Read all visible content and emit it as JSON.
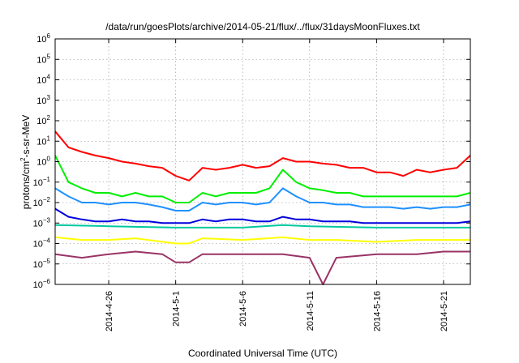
{
  "chart_data": {
    "type": "line",
    "title": "/data/run/goesPlots/archive/2014-05-21/flux/../flux/31daysMoonFluxes.txt",
    "xlabel": "Coordinated Universal Time (UTC)",
    "ylabel_parts": {
      "base": "protons/cm",
      "sup": "2",
      "rest": "-s-sr-MeV"
    },
    "y_scale": "log",
    "ylim": [
      1e-06,
      1000000.0
    ],
    "y_ticks": [
      {
        "exp": -6
      },
      {
        "exp": -5
      },
      {
        "exp": -4
      },
      {
        "exp": -3
      },
      {
        "exp": -2
      },
      {
        "exp": -1
      },
      {
        "exp": 0
      },
      {
        "exp": 1
      },
      {
        "exp": 2
      },
      {
        "exp": 3
      },
      {
        "exp": 4
      },
      {
        "exp": 5
      },
      {
        "exp": 6
      }
    ],
    "y_tick_base": "10",
    "xlim": [
      "2014-04-22",
      "2014-05-23"
    ],
    "x_ticks": [
      "2014-4-26",
      "2014-5-1",
      "2014-5-6",
      "2014-5-11",
      "2014-5-16",
      "2014-5-21"
    ],
    "grid": true,
    "legend": "none",
    "series": [
      {
        "color": "#ff0000",
        "values": [
          [
            "2014-04-22",
            30
          ],
          [
            "2014-04-23",
            5
          ],
          [
            "2014-04-24",
            3
          ],
          [
            "2014-04-25",
            2
          ],
          [
            "2014-04-26",
            1.5
          ],
          [
            "2014-04-27",
            1
          ],
          [
            "2014-04-28",
            0.8
          ],
          [
            "2014-04-29",
            0.6
          ],
          [
            "2014-04-30",
            0.5
          ],
          [
            "2014-05-01",
            0.2
          ],
          [
            "2014-05-02",
            0.12
          ],
          [
            "2014-05-03",
            0.5
          ],
          [
            "2014-05-04",
            0.4
          ],
          [
            "2014-05-05",
            0.5
          ],
          [
            "2014-05-06",
            0.7
          ],
          [
            "2014-05-07",
            0.5
          ],
          [
            "2014-05-08",
            0.6
          ],
          [
            "2014-05-09",
            1.5
          ],
          [
            "2014-05-10",
            1
          ],
          [
            "2014-05-11",
            1
          ],
          [
            "2014-05-12",
            0.8
          ],
          [
            "2014-05-13",
            0.7
          ],
          [
            "2014-05-14",
            0.5
          ],
          [
            "2014-05-15",
            0.5
          ],
          [
            "2014-05-16",
            0.3
          ],
          [
            "2014-05-17",
            0.3
          ],
          [
            "2014-05-18",
            0.2
          ],
          [
            "2014-05-19",
            0.4
          ],
          [
            "2014-05-20",
            0.3
          ],
          [
            "2014-05-21",
            0.4
          ],
          [
            "2014-05-22",
            0.5
          ],
          [
            "2014-05-23",
            2
          ]
        ]
      },
      {
        "color": "#00ee00",
        "values": [
          [
            "2014-04-22",
            2
          ],
          [
            "2014-04-23",
            0.1
          ],
          [
            "2014-04-24",
            0.05
          ],
          [
            "2014-04-25",
            0.03
          ],
          [
            "2014-04-26",
            0.03
          ],
          [
            "2014-04-27",
            0.02
          ],
          [
            "2014-04-28",
            0.03
          ],
          [
            "2014-04-29",
            0.02
          ],
          [
            "2014-04-30",
            0.02
          ],
          [
            "2014-05-01",
            0.01
          ],
          [
            "2014-05-02",
            0.01
          ],
          [
            "2014-05-03",
            0.03
          ],
          [
            "2014-05-04",
            0.02
          ],
          [
            "2014-05-05",
            0.03
          ],
          [
            "2014-05-06",
            0.03
          ],
          [
            "2014-05-07",
            0.03
          ],
          [
            "2014-05-08",
            0.05
          ],
          [
            "2014-05-09",
            0.4
          ],
          [
            "2014-05-10",
            0.1
          ],
          [
            "2014-05-11",
            0.05
          ],
          [
            "2014-05-12",
            0.04
          ],
          [
            "2014-05-13",
            0.03
          ],
          [
            "2014-05-14",
            0.03
          ],
          [
            "2014-05-15",
            0.02
          ],
          [
            "2014-05-16",
            0.02
          ],
          [
            "2014-05-17",
            0.02
          ],
          [
            "2014-05-18",
            0.02
          ],
          [
            "2014-05-19",
            0.02
          ],
          [
            "2014-05-20",
            0.02
          ],
          [
            "2014-05-21",
            0.02
          ],
          [
            "2014-05-22",
            0.02
          ],
          [
            "2014-05-23",
            0.03
          ]
        ]
      },
      {
        "color": "#1e90ff",
        "values": [
          [
            "2014-04-22",
            0.05
          ],
          [
            "2014-04-23",
            0.02
          ],
          [
            "2014-04-24",
            0.01
          ],
          [
            "2014-04-25",
            0.01
          ],
          [
            "2014-04-26",
            0.008
          ],
          [
            "2014-04-27",
            0.01
          ],
          [
            "2014-04-28",
            0.01
          ],
          [
            "2014-04-29",
            0.008
          ],
          [
            "2014-04-30",
            0.006
          ],
          [
            "2014-05-01",
            0.004
          ],
          [
            "2014-05-02",
            0.004
          ],
          [
            "2014-05-03",
            0.01
          ],
          [
            "2014-05-04",
            0.008
          ],
          [
            "2014-05-05",
            0.01
          ],
          [
            "2014-05-06",
            0.01
          ],
          [
            "2014-05-07",
            0.008
          ],
          [
            "2014-05-08",
            0.01
          ],
          [
            "2014-05-09",
            0.05
          ],
          [
            "2014-05-10",
            0.02
          ],
          [
            "2014-05-11",
            0.01
          ],
          [
            "2014-05-12",
            0.01
          ],
          [
            "2014-05-13",
            0.008
          ],
          [
            "2014-05-14",
            0.008
          ],
          [
            "2014-05-15",
            0.006
          ],
          [
            "2014-05-16",
            0.006
          ],
          [
            "2014-05-17",
            0.006
          ],
          [
            "2014-05-18",
            0.005
          ],
          [
            "2014-05-19",
            0.006
          ],
          [
            "2014-05-20",
            0.005
          ],
          [
            "2014-05-21",
            0.006
          ],
          [
            "2014-05-22",
            0.006
          ],
          [
            "2014-05-23",
            0.008
          ]
        ]
      },
      {
        "color": "#0000dd",
        "values": [
          [
            "2014-04-22",
            0.005
          ],
          [
            "2014-04-23",
            0.002
          ],
          [
            "2014-04-24",
            0.0015
          ],
          [
            "2014-04-25",
            0.0012
          ],
          [
            "2014-04-26",
            0.0012
          ],
          [
            "2014-04-27",
            0.0015
          ],
          [
            "2014-04-28",
            0.0012
          ],
          [
            "2014-04-29",
            0.0012
          ],
          [
            "2014-04-30",
            0.001
          ],
          [
            "2014-05-01",
            0.001
          ],
          [
            "2014-05-02",
            0.001
          ],
          [
            "2014-05-03",
            0.0015
          ],
          [
            "2014-05-04",
            0.0012
          ],
          [
            "2014-05-05",
            0.0015
          ],
          [
            "2014-05-06",
            0.0015
          ],
          [
            "2014-05-07",
            0.0012
          ],
          [
            "2014-05-08",
            0.0012
          ],
          [
            "2014-05-09",
            0.002
          ],
          [
            "2014-05-10",
            0.0015
          ],
          [
            "2014-05-11",
            0.0015
          ],
          [
            "2014-05-12",
            0.0012
          ],
          [
            "2014-05-13",
            0.0012
          ],
          [
            "2014-05-14",
            0.0012
          ],
          [
            "2014-05-15",
            0.001
          ],
          [
            "2014-05-16",
            0.001
          ],
          [
            "2014-05-17",
            0.001
          ],
          [
            "2014-05-18",
            0.001
          ],
          [
            "2014-05-19",
            0.001
          ],
          [
            "2014-05-20",
            0.001
          ],
          [
            "2014-05-21",
            0.001
          ],
          [
            "2014-05-22",
            0.001
          ],
          [
            "2014-05-23",
            0.0012
          ]
        ]
      },
      {
        "color": "#00c8a0",
        "values": [
          [
            "2014-04-22",
            0.0008
          ],
          [
            "2014-04-26",
            0.0007
          ],
          [
            "2014-05-01",
            0.0006
          ],
          [
            "2014-05-06",
            0.0006
          ],
          [
            "2014-05-09",
            0.0008
          ],
          [
            "2014-05-11",
            0.0007
          ],
          [
            "2014-05-16",
            0.0006
          ],
          [
            "2014-05-21",
            0.0006
          ],
          [
            "2014-05-23",
            0.0006
          ]
        ]
      },
      {
        "color": "#ffff00",
        "values": [
          [
            "2014-04-22",
            0.0002
          ],
          [
            "2014-04-24",
            0.00015
          ],
          [
            "2014-04-26",
            0.00015
          ],
          [
            "2014-04-28",
            0.00018
          ],
          [
            "2014-05-01",
            0.0001
          ],
          [
            "2014-05-02",
            0.0001
          ],
          [
            "2014-05-03",
            0.00018
          ],
          [
            "2014-05-06",
            0.00015
          ],
          [
            "2014-05-09",
            0.0002
          ],
          [
            "2014-05-11",
            0.00015
          ],
          [
            "2014-05-13",
            0.00015
          ],
          [
            "2014-05-16",
            0.00012
          ],
          [
            "2014-05-19",
            0.00015
          ],
          [
            "2014-05-21",
            0.00015
          ],
          [
            "2014-05-23",
            0.00015
          ]
        ]
      },
      {
        "color": "#993366",
        "values": [
          [
            "2014-04-22",
            3e-05
          ],
          [
            "2014-04-24",
            2e-05
          ],
          [
            "2014-04-26",
            3e-05
          ],
          [
            "2014-04-28",
            4e-05
          ],
          [
            "2014-04-30",
            3e-05
          ],
          [
            "2014-05-01",
            1.2e-05
          ],
          [
            "2014-05-02",
            1.2e-05
          ],
          [
            "2014-05-03",
            3e-05
          ],
          [
            "2014-05-06",
            3e-05
          ],
          [
            "2014-05-09",
            3e-05
          ],
          [
            "2014-05-11",
            2e-05
          ],
          [
            "2014-05-12",
            1e-06
          ],
          [
            "2014-05-13",
            2e-05
          ],
          [
            "2014-05-16",
            3e-05
          ],
          [
            "2014-05-19",
            3e-05
          ],
          [
            "2014-05-21",
            4e-05
          ],
          [
            "2014-05-23",
            4e-05
          ]
        ]
      }
    ]
  }
}
